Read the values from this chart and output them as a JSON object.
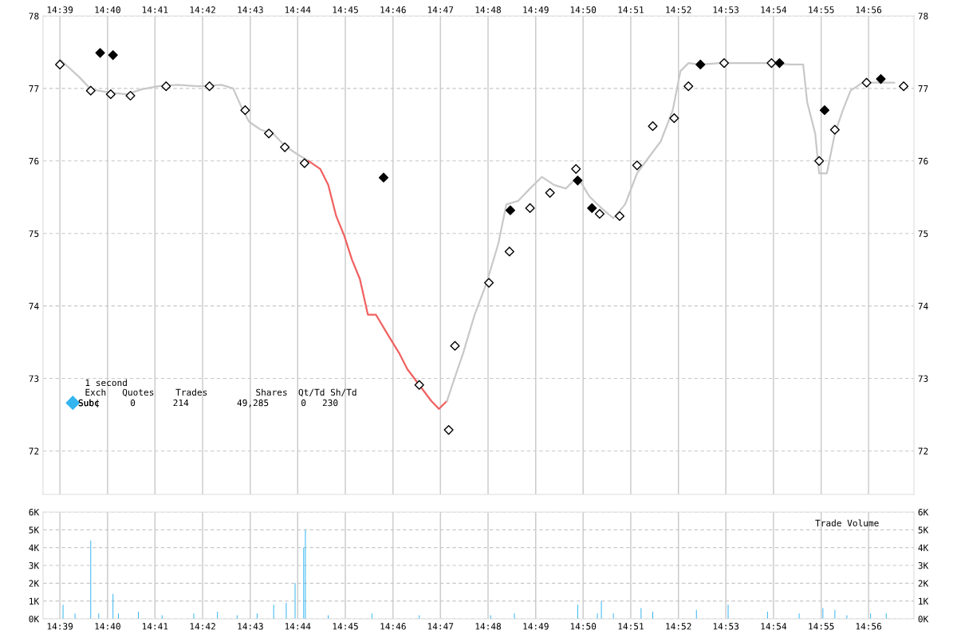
{
  "chart_data": [
    {
      "type": "line",
      "annotations": [
        "1 second",
        "Exch   Quotes    Trades         Shares  Qt/Td Sh/Td",
        "0       214         49,285      0   230"
      ],
      "xlim": [
        14.6441,
        14.9492
      ],
      "xticks": [
        {
          "value": 14.65,
          "label": "14:39"
        },
        {
          "value": 14.6667,
          "label": "14:40"
        },
        {
          "value": 14.6833,
          "label": "14:41"
        },
        {
          "value": 14.7,
          "label": "14:42"
        },
        {
          "value": 14.7167,
          "label": "14:43"
        },
        {
          "value": 14.7333,
          "label": "14:44"
        },
        {
          "value": 14.75,
          "label": "14:45"
        },
        {
          "value": 14.7667,
          "label": "14:46"
        },
        {
          "value": 14.7833,
          "label": "14:47"
        },
        {
          "value": 14.8,
          "label": "14:48"
        },
        {
          "value": 14.8167,
          "label": "14:49"
        },
        {
          "value": 14.8333,
          "label": "14:50"
        },
        {
          "value": 14.85,
          "label": "14:51"
        },
        {
          "value": 14.8667,
          "label": "14:52"
        },
        {
          "value": 14.8833,
          "label": "14:53"
        },
        {
          "value": 14.9,
          "label": "14:54"
        },
        {
          "value": 14.9167,
          "label": "14:55"
        },
        {
          "value": 14.9333,
          "label": "14:56"
        }
      ],
      "ylim": [
        71.4,
        78
      ],
      "yticks": [
        72,
        73,
        74,
        75,
        76,
        77,
        78
      ],
      "y2lim": [
        71.4,
        78
      ],
      "y2ticks": [
        72,
        73,
        74,
        75,
        76,
        77,
        78
      ],
      "grid": true,
      "series": [
        {
          "type": "line",
          "color": "#c8c8c8",
          "x": [
            14.65,
            14.6567,
            14.6608,
            14.6678,
            14.6733,
            14.6788,
            14.6844,
            14.6913,
            14.6983,
            14.7066,
            14.7107,
            14.7135,
            14.7163,
            14.7204,
            14.7246,
            14.7288,
            14.7329,
            14.7371
          ],
          "values": [
            77.4,
            77.16,
            76.99,
            76.94,
            76.92,
            76.99,
            77.03,
            77.05,
            77.03,
            77.05,
            77.0,
            76.75,
            76.54,
            76.43,
            76.38,
            76.21,
            76.1,
            76.0
          ]
        },
        {
          "type": "line",
          "color": "#f06060",
          "x": [
            14.7371,
            14.7412,
            14.744,
            14.7468,
            14.7496,
            14.7523,
            14.7551,
            14.7579,
            14.7607,
            14.7648,
            14.769,
            14.7717,
            14.7759,
            14.7801,
            14.7828,
            14.7856
          ],
          "values": [
            76.0,
            75.89,
            75.67,
            75.24,
            74.97,
            74.64,
            74.37,
            73.88,
            73.88,
            73.61,
            73.34,
            73.13,
            72.91,
            72.69,
            72.58,
            72.69
          ]
        },
        {
          "type": "line",
          "color": "#c8c8c8",
          "x": [
            14.7856,
            14.7884,
            14.7912,
            14.7953,
            14.7995,
            14.8036,
            14.8064,
            14.8106,
            14.8147,
            14.8189,
            14.8231,
            14.8272,
            14.8314,
            14.8355,
            14.8397,
            14.8439,
            14.848,
            14.8522,
            14.8563,
            14.8605,
            14.8647,
            14.8674,
            14.8702,
            14.8744,
            14.8813,
            14.8896,
            14.8979,
            14.9062,
            14.9104,
            14.9118,
            14.9146,
            14.916,
            14.9187,
            14.9215,
            14.9243,
            14.927,
            14.9312,
            14.9368,
            14.9423
          ],
          "values": [
            72.69,
            73.02,
            73.34,
            73.88,
            74.32,
            74.86,
            75.4,
            75.45,
            75.62,
            75.78,
            75.67,
            75.62,
            75.78,
            75.51,
            75.35,
            75.21,
            75.4,
            75.83,
            76.05,
            76.27,
            76.7,
            77.24,
            77.35,
            77.33,
            77.35,
            77.35,
            77.35,
            77.33,
            77.33,
            76.81,
            76.38,
            75.83,
            75.83,
            76.38,
            76.7,
            76.97,
            77.08,
            77.08,
            77.08
          ]
        },
        {
          "type": "scatter",
          "marker": "diamond",
          "color": "#ffffff",
          "x": [
            14.65,
            14.6608,
            14.6678,
            14.6747,
            14.6872,
            14.7024,
            14.7149,
            14.7232,
            14.7288,
            14.7357,
            14.7759,
            14.7862,
            14.7884,
            14.8003,
            14.8075,
            14.8147,
            14.8217,
            14.8308,
            14.8391,
            14.8461,
            14.8522,
            14.8577,
            14.8652,
            14.8702,
            14.8827,
            14.8993,
            14.916,
            14.9215,
            14.9326,
            14.9456
          ],
          "values": [
            77.33,
            76.97,
            76.92,
            76.9,
            77.03,
            77.03,
            76.7,
            76.38,
            76.19,
            75.97,
            72.91,
            72.29,
            73.45,
            74.32,
            74.75,
            75.35,
            75.56,
            75.89,
            75.27,
            75.24,
            75.94,
            76.48,
            76.59,
            77.03,
            77.35,
            77.35,
            76.0,
            76.43,
            77.08,
            77.03
          ]
        },
        {
          "type": "scatter",
          "marker": "diamond",
          "color": "#000000",
          "x": [
            14.6641,
            14.6686,
            14.7634,
            14.8078,
            14.8314,
            14.8364,
            14.8744,
            14.9021,
            14.9179,
            14.9376
          ],
          "values": [
            77.49,
            77.46,
            75.77,
            75.32,
            75.73,
            75.35,
            77.33,
            77.35,
            76.7,
            77.13
          ]
        }
      ]
    },
    {
      "type": "bar",
      "title": "Trade Volume",
      "legend": "left",
      "xlim": [
        14.6441,
        14.9492
      ],
      "xticks": [
        {
          "value": 14.65,
          "label": "14:39"
        },
        {
          "value": 14.6667,
          "label": "14:40"
        },
        {
          "value": 14.6833,
          "label": "14:41"
        },
        {
          "value": 14.7,
          "label": "14:42"
        },
        {
          "value": 14.7167,
          "label": "14:43"
        },
        {
          "value": 14.7333,
          "label": "14:44"
        },
        {
          "value": 14.75,
          "label": "14:45"
        },
        {
          "value": 14.7667,
          "label": "14:46"
        },
        {
          "value": 14.7833,
          "label": "14:47"
        },
        {
          "value": 14.8,
          "label": "14:48"
        },
        {
          "value": 14.8167,
          "label": "14:49"
        },
        {
          "value": 14.8333,
          "label": "14:50"
        },
        {
          "value": 14.85,
          "label": "14:51"
        },
        {
          "value": 14.8667,
          "label": "14:52"
        },
        {
          "value": 14.8833,
          "label": "14:53"
        },
        {
          "value": 14.9,
          "label": "14:54"
        },
        {
          "value": 14.9167,
          "label": "14:55"
        },
        {
          "value": 14.9333,
          "label": "14:56"
        }
      ],
      "ylim": [
        0,
        6000
      ],
      "yticks": [
        {
          "value": 0,
          "label": "0K"
        },
        {
          "value": 1000,
          "label": "1K"
        },
        {
          "value": 2000,
          "label": "2K"
        },
        {
          "value": 3000,
          "label": "3K"
        },
        {
          "value": 4000,
          "label": "4K"
        },
        {
          "value": 5000,
          "label": "5K"
        },
        {
          "value": 6000,
          "label": "6K"
        }
      ],
      "y2lim": [
        0,
        6000
      ],
      "y2ticks": [
        {
          "value": 0,
          "label": "0K"
        },
        {
          "value": 1000,
          "label": "1K"
        },
        {
          "value": 2000,
          "label": "2K"
        },
        {
          "value": 3000,
          "label": "3K"
        },
        {
          "value": 4000,
          "label": "4K"
        },
        {
          "value": 5000,
          "label": "5K"
        },
        {
          "value": 6000,
          "label": "6K"
        }
      ],
      "grid": true,
      "series": [
        {
          "name": "Sub¢",
          "color": "#33b5f0",
          "x": [
            14.6511,
            14.6553,
            14.6608,
            14.6636,
            14.6686,
            14.6705,
            14.6775,
            14.6858,
            14.6969,
            14.7052,
            14.7121,
            14.7191,
            14.7249,
            14.7293,
            14.7324,
            14.7354,
            14.736,
            14.744,
            14.7593,
            14.7759,
            14.8009,
            14.8092,
            14.8314,
            14.8383,
            14.8397,
            14.8439,
            14.8536,
            14.8577,
            14.873,
            14.8841,
            14.8979,
            14.909,
            14.9173,
            14.9215,
            14.9257,
            14.934,
            14.9395
          ],
          "values": [
            800,
            300,
            4400,
            300,
            1400,
            300,
            400,
            200,
            300,
            400,
            200,
            300,
            800,
            900,
            2000,
            4000,
            5000,
            200,
            300,
            200,
            200,
            300,
            800,
            300,
            1000,
            300,
            600,
            400,
            500,
            800,
            400,
            300,
            600,
            500,
            200,
            300,
            300
          ]
        }
      ]
    }
  ]
}
